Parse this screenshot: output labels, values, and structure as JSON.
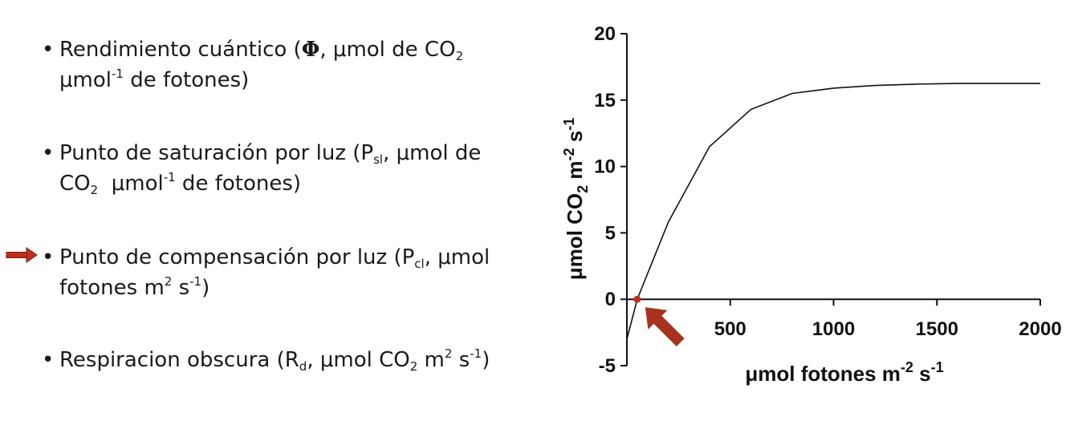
{
  "bullets": [
    {
      "lead": "Rendimiento cuántico (",
      "symbol": "Φ",
      "l1_after": ", μmol de CO",
      "l1_sub": "2",
      "l2_a": "μmol",
      "l2_sup": "-1",
      "l2_b": " de fotones)"
    },
    {
      "l1_a": "Punto de saturación por luz (P",
      "l1_sub": "sl",
      "l1_b": ", μmol de",
      "l2_a": "CO",
      "l2_sub": "2",
      "l2_b": "  μmol",
      "l2_sup": "-1",
      "l2_c": " de fotones)"
    },
    {
      "l1_a": "Punto de compensación por luz (P",
      "l1_sub": "cl",
      "l1_b": ", μmol",
      "l2_a": "fotones m",
      "l2_sup1": "2",
      "l2_b": " s",
      "l2_sup2": "-1",
      "l2_c": ")"
    },
    {
      "l1_a": "Respiracion obscura (R",
      "l1_sub": "d",
      "l1_b": ", μmol CO",
      "l1_sub2": "2",
      "l1_c": " m",
      "l1_sup1": "2",
      "l1_d": " s",
      "l1_sup2": "-1",
      "l1_e": ")"
    }
  ],
  "highlight_arrow_color": "#c0301c",
  "chart_data": {
    "type": "line",
    "x": [
      0,
      50,
      200,
      400,
      600,
      800,
      1000,
      1200,
      1400,
      1600,
      1800,
      2000
    ],
    "y": [
      -3,
      0,
      5.8,
      11.5,
      14.3,
      15.5,
      15.9,
      16.1,
      16.2,
      16.25,
      16.25,
      16.25
    ],
    "xlim": [
      0,
      2000
    ],
    "ylim": [
      -5,
      20
    ],
    "xticks": [
      500,
      1000,
      1500,
      2000
    ],
    "yticks": [
      -5,
      0,
      5,
      10,
      15,
      20
    ],
    "xlabel": {
      "main": "μmol fotones m",
      "sup1": "-2",
      "mid": " s",
      "sup2": "-1"
    },
    "ylabel": {
      "a": "μmol CO",
      "sub": "2",
      "b": " m",
      "sup1": "-2",
      "c": " s",
      "sup2": "-1"
    },
    "compensation_point": {
      "x": 50,
      "y": 0
    },
    "line_color": "#111111",
    "point_color": "#c0301c",
    "arrow_color": "#a8321e"
  }
}
